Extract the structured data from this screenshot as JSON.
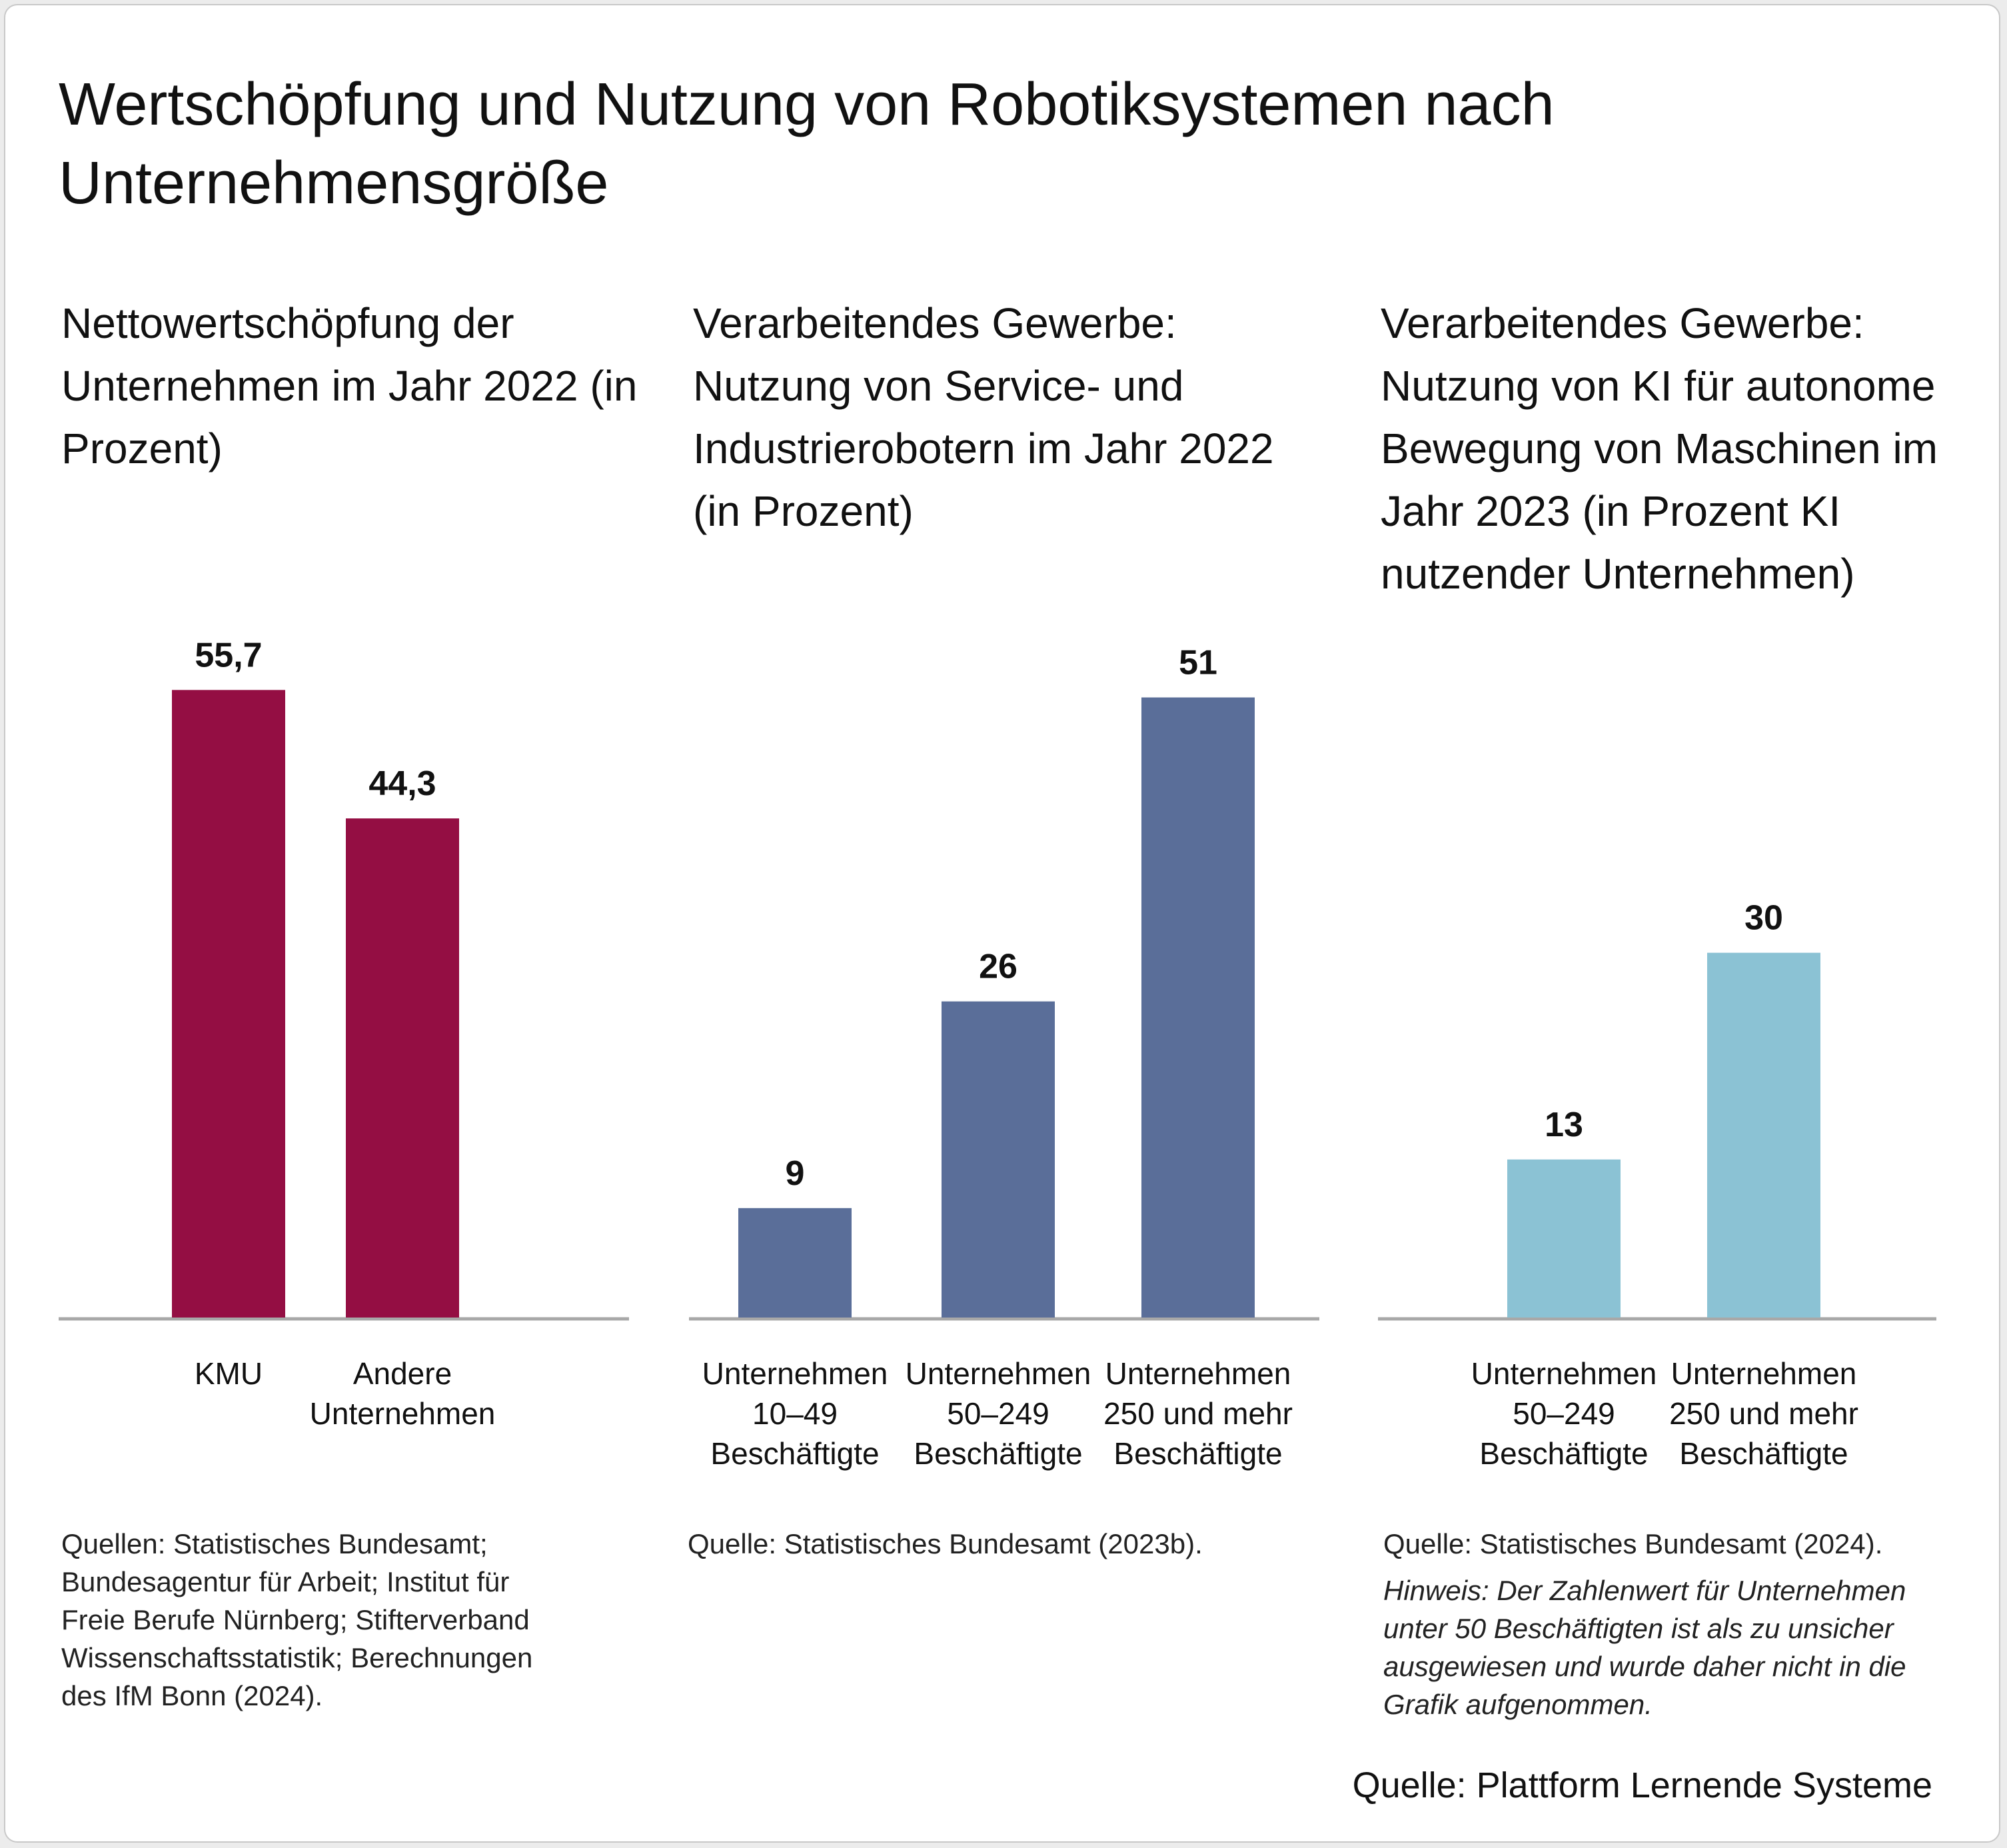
{
  "title": "Wertschöpfung und Nutzung von Robotiksystemen nach Unternehmensgröße",
  "colors": {
    "panel1": "#940e43",
    "panel2": "#5a6e99",
    "panel3": "#8bc2d4",
    "axis": "#a8a8a8"
  },
  "chart_data": [
    {
      "type": "bar",
      "title": "Nettowertschöpfung der Unternehmen im Jahr 2022 (in Prozent)",
      "categories": [
        [
          "KMU"
        ],
        [
          "Andere",
          "Unternehmen"
        ]
      ],
      "values": [
        55.7,
        44.3
      ],
      "value_labels": [
        "55,7",
        "44,3"
      ],
      "ylim": [
        0,
        62.7
      ],
      "source": "Quellen: Statistisches Bundesamt; Bundesagentur für Arbeit; Institut für Freie Berufe Nürnberg; Stifterverband Wissenschaftsstatistik; Berechnungen des IfM Bonn (2024)."
    },
    {
      "type": "bar",
      "title": "Verarbeitendes Gewerbe: Nutzung von Service- und Industrierobotern im Jahr 2022 (in Prozent)",
      "categories": [
        [
          "Unternehmen",
          "10–49",
          "Beschäftigte"
        ],
        [
          "Unternehmen",
          "50–249",
          "Beschäftigte"
        ],
        [
          "Unternehmen",
          "250 und mehr",
          "Beschäftigte"
        ]
      ],
      "values": [
        9,
        26,
        51
      ],
      "value_labels": [
        "9",
        "26",
        "51"
      ],
      "ylim": [
        0,
        58.1
      ],
      "source": "Quelle: Statistisches Bundesamt (2023b)."
    },
    {
      "type": "bar",
      "title": "Verarbeitendes Gewerbe: Nutzung von KI für autonome Bewegung von Maschinen im Jahr 2023 (in Prozent KI nutzender Unternehmen)",
      "categories": [
        [
          "Unternehmen",
          "50–249",
          "Beschäftigte"
        ],
        [
          "Unternehmen",
          "250 und mehr",
          "Beschäftigte"
        ]
      ],
      "values": [
        13,
        30
      ],
      "value_labels": [
        "13",
        "30"
      ],
      "ylim": [
        0,
        58.1
      ],
      "source": "Quelle: Statistisches Bundesamt (2024).",
      "note": "Hinweis: Der Zahlenwert für Unternehmen unter 50 Beschäftigten ist als zu unsicher ausgewiesen und wurde daher nicht in die Grafik aufgenommen."
    }
  ],
  "footer_source": "Quelle: Plattform Lernende Systeme"
}
